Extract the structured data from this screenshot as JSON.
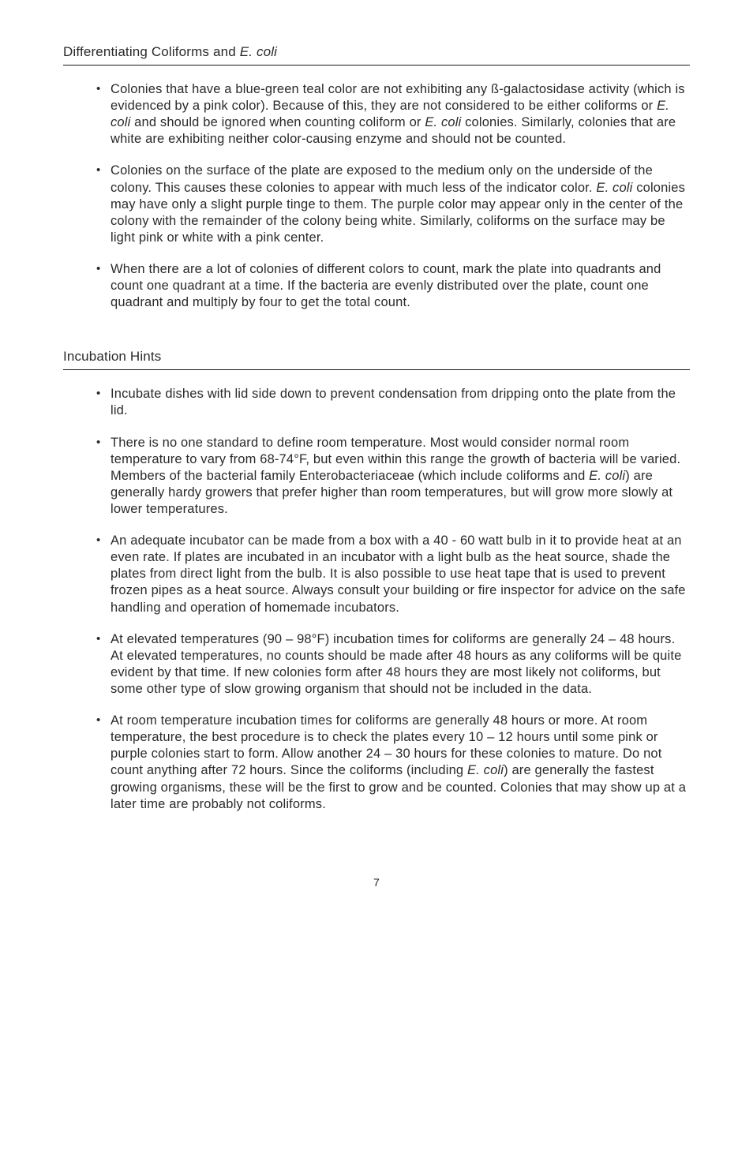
{
  "section1": {
    "heading_prefix": "Differentiating Coliforms and ",
    "heading_italic": "E. coli",
    "items": [
      {
        "parts": [
          {
            "text": "Colonies that have a blue-green teal color are not exhibiting any ß-galactosidase activity (which is evidenced by a pink color). Because of this, they are not considered to be either coliforms or "
          },
          {
            "text": "E. coli",
            "italic": true
          },
          {
            "text": " and should be ignored when counting coliform or "
          },
          {
            "text": "E. coli",
            "italic": true
          },
          {
            "text": " colonies. Similarly, colonies that are white are exhibiting neither color-causing enzyme and should not be counted."
          }
        ]
      },
      {
        "parts": [
          {
            "text": "Colonies on the surface of the plate are exposed to the medium only on the underside of the colony. This causes these colonies to appear with much less of the indicator color. "
          },
          {
            "text": "E. coli",
            "italic": true
          },
          {
            "text": " colonies may have only a slight purple tinge to them. The purple color may appear only in the center of the colony with the remainder of the colony being white. Similarly, coliforms on the surface may be light pink or white with a pink center."
          }
        ]
      },
      {
        "parts": [
          {
            "text": "When there are a lot of colonies of different colors to count, mark the plate into quadrants and count one quadrant at a time. If the bacteria are evenly distributed over the plate, count one quadrant and multiply by four to get the total count."
          }
        ]
      }
    ]
  },
  "section2": {
    "heading": "Incubation Hints",
    "items": [
      {
        "parts": [
          {
            "text": "Incubate dishes with lid side down to prevent condensation from dripping onto the plate from the lid."
          }
        ]
      },
      {
        "parts": [
          {
            "text": "There is no one standard to define room temperature. Most would consider normal room temperature to vary from 68-74°F, but even within this range the growth of bacteria will be varied. Members of the bacterial family Enterobacteriaceae (which include coliforms and "
          },
          {
            "text": "E. coli",
            "italic": true
          },
          {
            "text": ") are generally hardy growers that prefer higher than room temperatures, but will grow more slowly at lower temperatures."
          }
        ]
      },
      {
        "parts": [
          {
            "text": "An adequate incubator can be made from a box with a 40 - 60 watt bulb in it to provide heat at an even rate. If plates are incubated in an incubator with a light bulb as the heat source, shade the plates from direct light from the bulb. It is also possible to use heat tape that is used to prevent frozen pipes as a heat source. Always consult your building or fire inspector for advice on the safe handling and operation of homemade incubators."
          }
        ]
      },
      {
        "parts": [
          {
            "text": "At elevated temperatures (90 – 98°F) incubation times for coliforms are generally 24 – 48 hours. At elevated temperatures, no counts should be made after 48 hours as any coliforms will be quite evident by that time. If new colonies form after 48 hours they are most likely not coliforms, but some other type of slow growing organism that should not be included in the data."
          }
        ]
      },
      {
        "parts": [
          {
            "text": "At room temperature incubation times for coliforms are generally 48 hours or more. At room temperature, the best procedure is to check the plates every 10 – 12 hours until some pink or purple colonies start to form. Allow another 24 – 30 hours for these colonies to mature. Do not count anything after 72 hours. Since the coliforms (including "
          },
          {
            "text": "E. coli",
            "italic": true
          },
          {
            "text": ") are generally the fastest growing organisms, these will be the first to grow and be counted. Colonies that may show up at a later time are probably not coliforms."
          }
        ]
      }
    ]
  },
  "pageNumber": "7"
}
